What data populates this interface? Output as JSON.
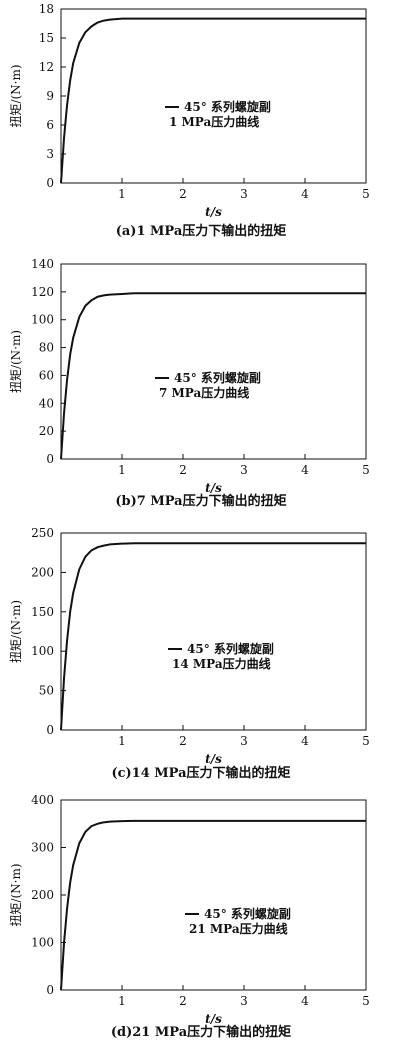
{
  "chart_data": [
    {
      "type": "line",
      "caption": "(a)1 MPa压力下输出的扭矩",
      "xlabel": "t/s",
      "ylabel": "扭矩/(N·m)",
      "xlim": [
        0,
        5
      ],
      "ylim": [
        0,
        18
      ],
      "xticks": [
        "1",
        "2",
        "3",
        "4",
        "5"
      ],
      "yticks": [
        "0",
        "3",
        "6",
        "9",
        "12",
        "15",
        "18"
      ],
      "grid": false,
      "legend_placement": "center",
      "series": [
        {
          "name": "45° 系列螺旋副 1 MPa压力曲线",
          "x": [
            0,
            0.05,
            0.1,
            0.15,
            0.2,
            0.3,
            0.4,
            0.5,
            0.6,
            0.7,
            0.8,
            1.0,
            1.2,
            1.5,
            2,
            3,
            4,
            5
          ],
          "y": [
            0,
            4.7,
            8.1,
            10.6,
            12.4,
            14.5,
            15.6,
            16.2,
            16.6,
            16.8,
            16.9,
            17.0,
            17.0,
            17.0,
            17.0,
            17.0,
            17.0,
            17.0
          ]
        }
      ]
    },
    {
      "type": "line",
      "caption": "(b)7 MPa压力下输出的扭矩",
      "xlabel": "t/s",
      "ylabel": "扭矩/(N·m)",
      "xlim": [
        0,
        5
      ],
      "ylim": [
        0,
        140
      ],
      "xticks": [
        "1",
        "2",
        "3",
        "4",
        "5"
      ],
      "yticks": [
        "0",
        "20",
        "40",
        "60",
        "80",
        "100",
        "120",
        "140"
      ],
      "grid": false,
      "legend_placement": "center",
      "series": [
        {
          "name": "45° 系列螺旋副 7 MPa压力曲线",
          "x": [
            0,
            0.05,
            0.1,
            0.15,
            0.2,
            0.3,
            0.4,
            0.5,
            0.6,
            0.7,
            0.8,
            1.0,
            1.2,
            1.5,
            2,
            3,
            4,
            5
          ],
          "y": [
            0,
            33,
            57,
            75,
            87,
            102,
            110,
            114,
            116.5,
            117.5,
            118,
            118.5,
            119,
            119,
            119,
            119,
            119,
            119
          ]
        }
      ]
    },
    {
      "type": "line",
      "caption": "(c)14 MPa压力下输出的扭矩",
      "xlabel": "t/s",
      "ylabel": "扭矩/(N·m)",
      "xlim": [
        0,
        5
      ],
      "ylim": [
        0,
        250
      ],
      "xticks": [
        "1",
        "2",
        "3",
        "4",
        "5"
      ],
      "yticks": [
        "0",
        "50",
        "100",
        "150",
        "200",
        "250"
      ],
      "grid": false,
      "legend_placement": "center",
      "series": [
        {
          "name": "45° 系列螺旋副 14 MPa压力曲线",
          "x": [
            0,
            0.05,
            0.1,
            0.15,
            0.2,
            0.3,
            0.4,
            0.5,
            0.6,
            0.7,
            0.8,
            1.0,
            1.2,
            1.5,
            2,
            3,
            4,
            5
          ],
          "y": [
            0,
            66,
            114,
            150,
            174,
            204,
            220,
            228,
            232,
            234,
            235.5,
            236.5,
            237,
            237,
            237,
            237,
            237,
            237
          ]
        }
      ]
    },
    {
      "type": "line",
      "caption": "(d)21 MPa压力下输出的扭矩",
      "xlabel": "t/s",
      "ylabel": "扭矩/(N·m)",
      "xlim": [
        0,
        5
      ],
      "ylim": [
        0,
        400
      ],
      "xticks": [
        "1",
        "2",
        "3",
        "4",
        "5"
      ],
      "yticks": [
        "0",
        "100",
        "200",
        "300",
        "400"
      ],
      "grid": false,
      "legend_placement": "center",
      "series": [
        {
          "name": "45° 系列螺旋副 21 MPa压力曲线",
          "x": [
            0,
            0.05,
            0.1,
            0.15,
            0.2,
            0.3,
            0.4,
            0.5,
            0.6,
            0.7,
            0.8,
            1.0,
            1.2,
            1.5,
            2,
            3,
            4,
            5
          ],
          "y": [
            0,
            100,
            172,
            226,
            263,
            309,
            333,
            345,
            350,
            353,
            354.5,
            355.5,
            356,
            356,
            356,
            356,
            356,
            356
          ]
        }
      ]
    }
  ],
  "legends": [
    {
      "line1": "45°  系列螺旋副",
      "line2": "1 MPa压力曲线"
    },
    {
      "line1": "45°  系列螺旋副",
      "line2": "7 MPa压力曲线"
    },
    {
      "line1": "45°  系列螺旋副",
      "line2": "14 MPa压力曲线"
    },
    {
      "line1": "45°  系列螺旋副",
      "line2": "21 MPa压力曲线"
    }
  ],
  "style": {
    "line_color": "#111111",
    "axis_color": "#111111"
  }
}
